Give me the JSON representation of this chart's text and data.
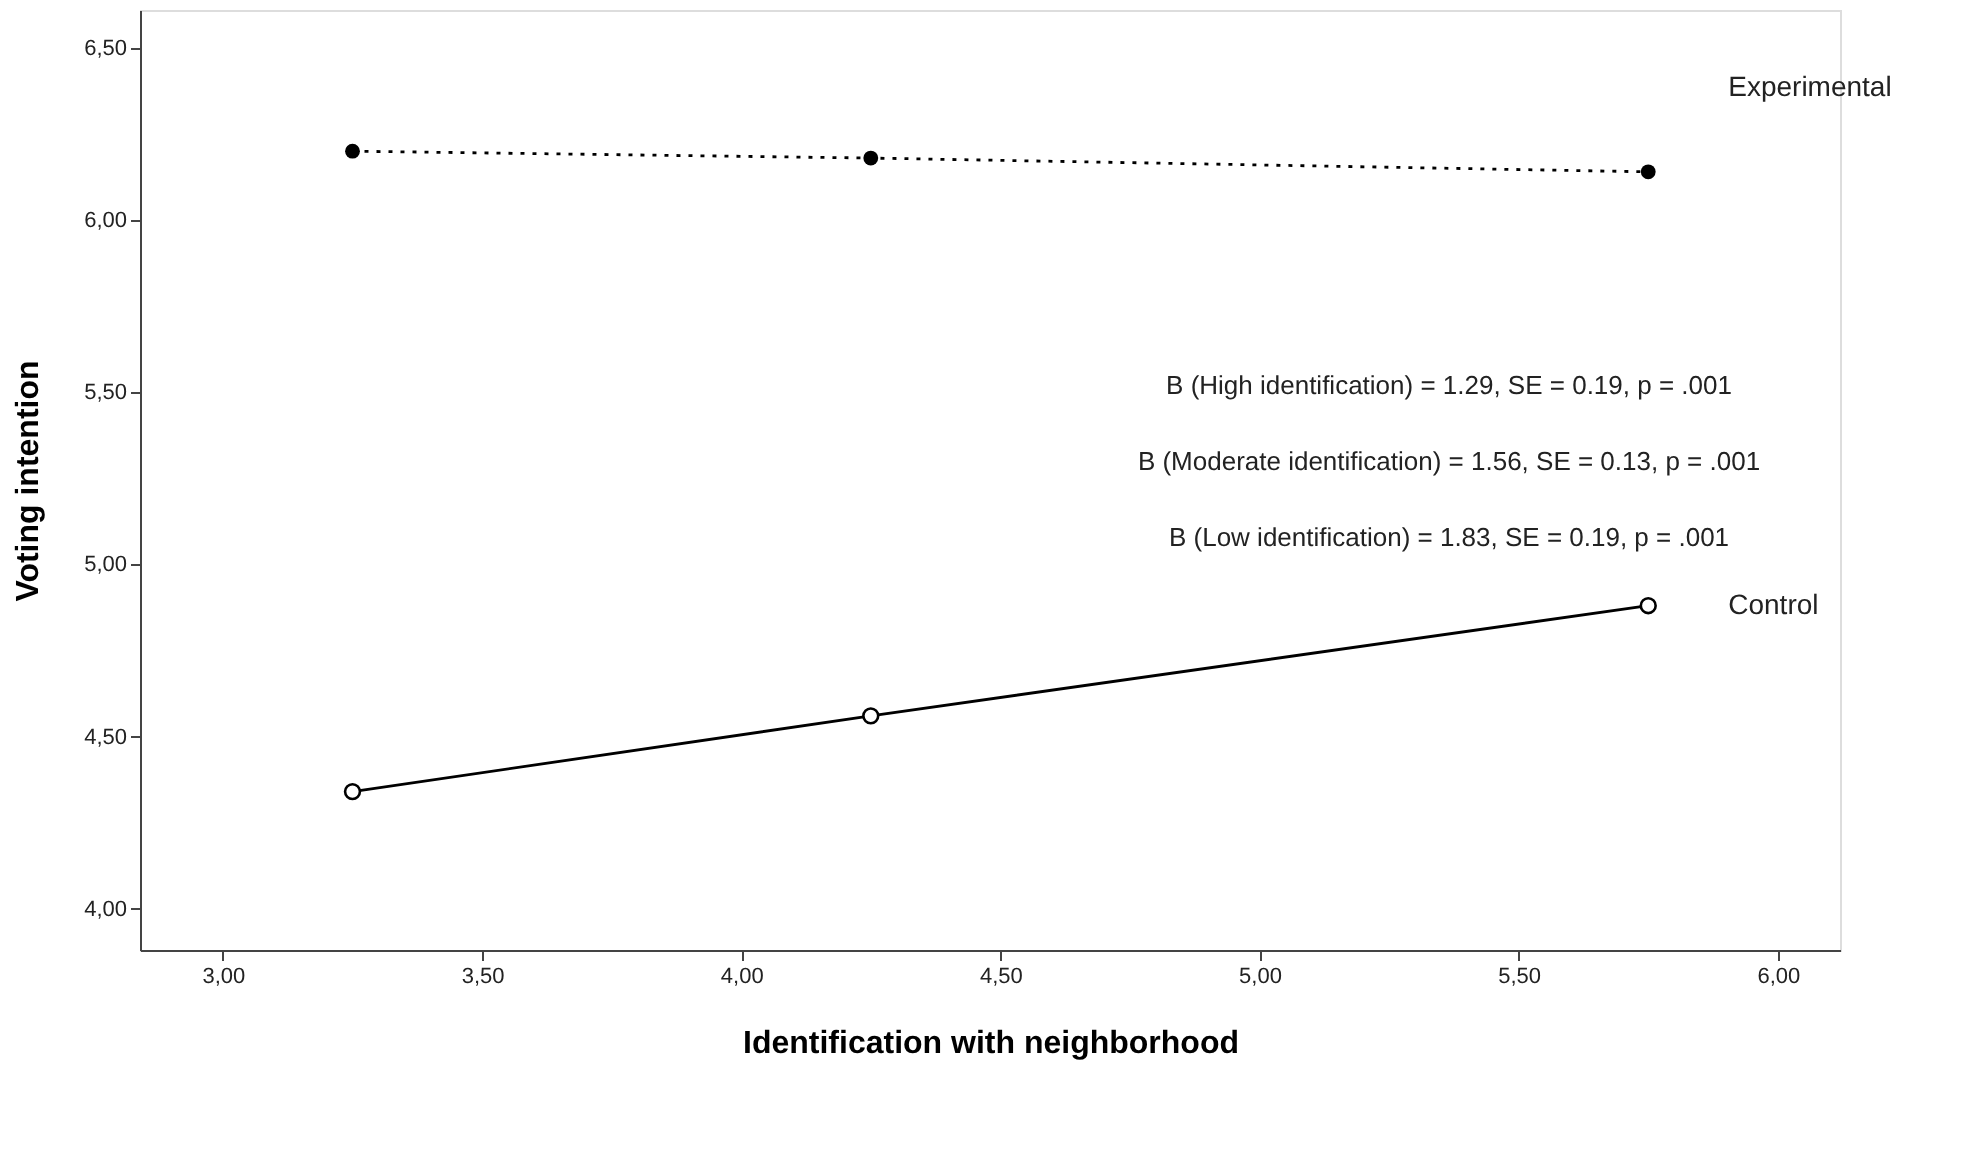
{
  "chart_data": {
    "type": "line",
    "xlabel": "Identification with neighborhood",
    "ylabel": "Voting intention",
    "x": [
      3.25,
      4.25,
      5.75
    ],
    "series": [
      {
        "name": "Experimental",
        "color": "#000000",
        "values": [
          6.2,
          6.18,
          6.14
        ],
        "line_style": "dotted"
      },
      {
        "name": "Control",
        "color": "#000000",
        "values": [
          4.34,
          4.56,
          4.88
        ],
        "line_style": "solid"
      }
    ],
    "xlim": [
      2.84,
      6.12
    ],
    "xticks": [
      {
        "value": 3.0,
        "label": "3,00"
      },
      {
        "value": 3.5,
        "label": "3,50"
      },
      {
        "value": 4.0,
        "label": "4,00"
      },
      {
        "value": 4.5,
        "label": "4,50"
      },
      {
        "value": 5.0,
        "label": "5,00"
      },
      {
        "value": 5.5,
        "label": "5,50"
      },
      {
        "value": 6.0,
        "label": "6,00"
      }
    ],
    "ylim": [
      3.88,
      6.61
    ],
    "yticks": [
      {
        "value": 4.0,
        "label": "4,00"
      },
      {
        "value": 4.5,
        "label": "4,50"
      },
      {
        "value": 5.0,
        "label": "5,00"
      },
      {
        "value": 5.5,
        "label": "5,50"
      },
      {
        "value": 6.0,
        "label": "6,00"
      },
      {
        "value": 6.5,
        "label": "6,50"
      }
    ],
    "marker": "circle",
    "grid": false,
    "annotations": [
      "B (High identification) = 1.29, SE = 0.19, p = .001",
      "B (Moderate identification) = 1.56, SE = 0.13, p = .001",
      "B (Low identification) = 1.83, SE = 0.19, p = .001"
    ]
  }
}
